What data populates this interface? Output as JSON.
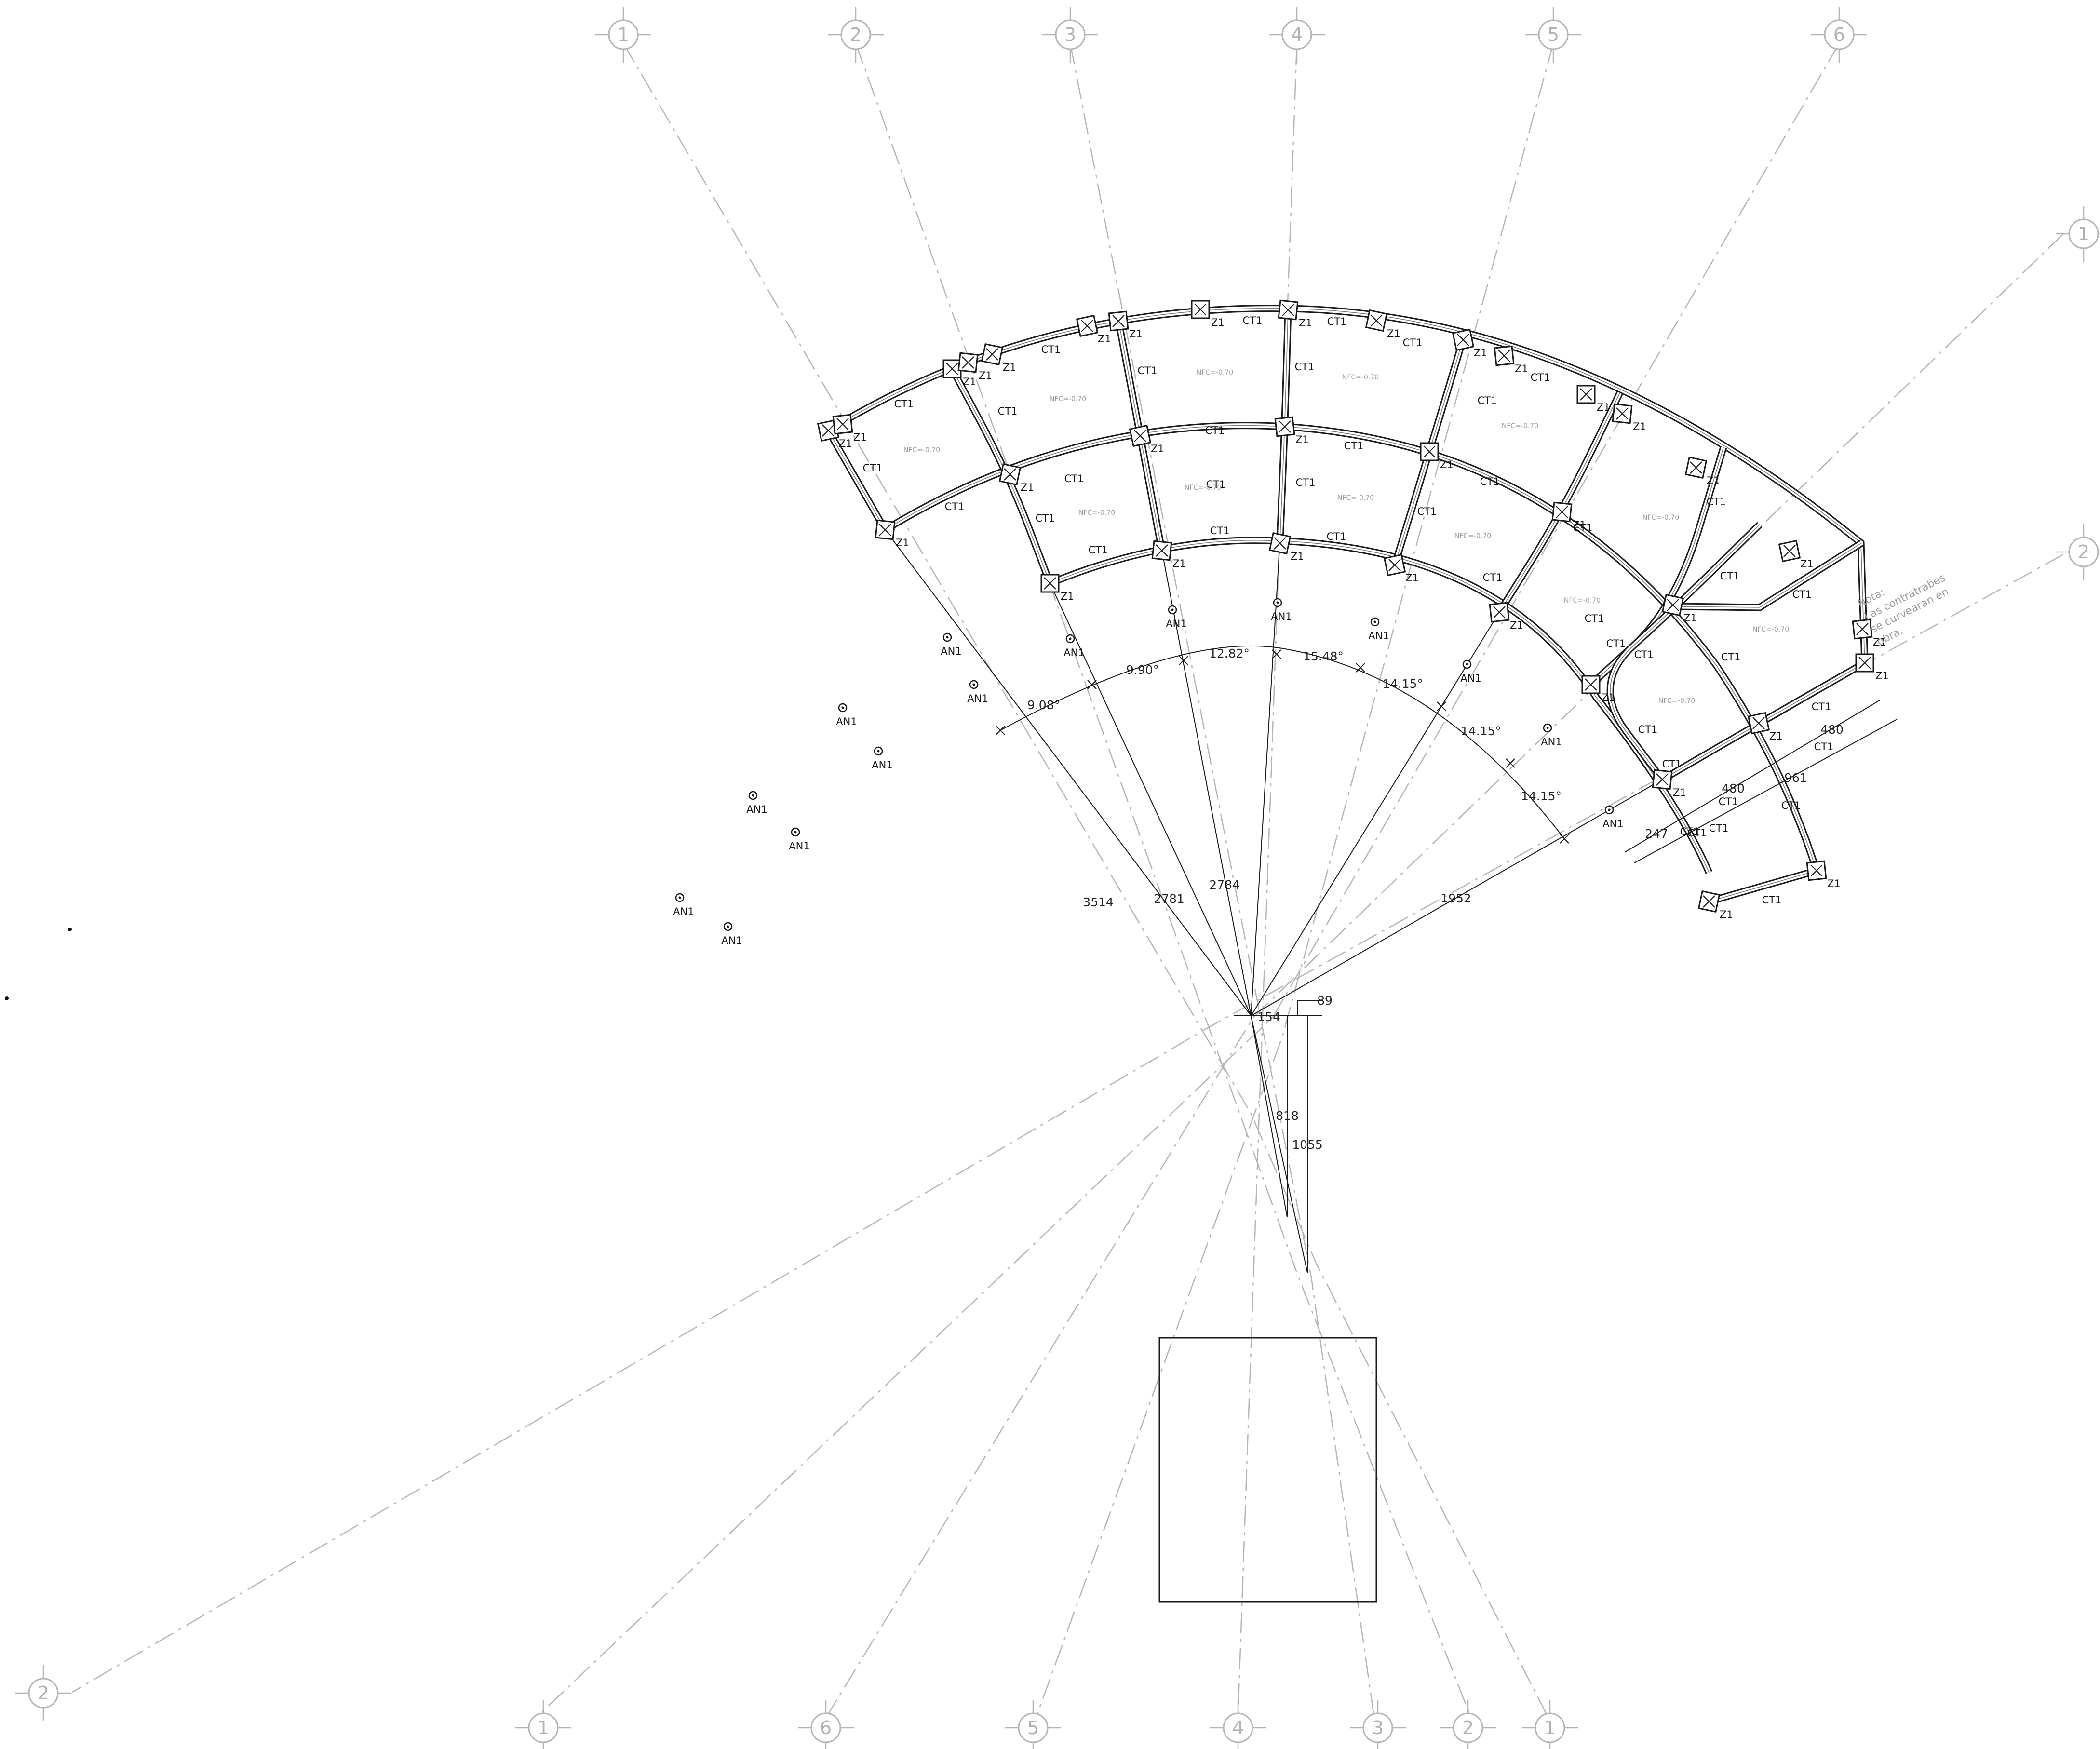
{
  "colors": {
    "line": "#1a1a1a",
    "grid_axis": "#b4b4b4",
    "note": "#9a9a9a"
  },
  "grid_bubbles": [
    {
      "id": "top-1",
      "label": "1"
    },
    {
      "id": "top-2",
      "label": "2"
    },
    {
      "id": "top-3",
      "label": "3"
    },
    {
      "id": "top-4",
      "label": "4"
    },
    {
      "id": "top-5",
      "label": "5"
    },
    {
      "id": "top-6",
      "label": "6"
    },
    {
      "id": "right-1",
      "label": "1"
    },
    {
      "id": "right-2",
      "label": "2"
    },
    {
      "id": "left-2",
      "label": "2"
    },
    {
      "id": "bottom-1",
      "label": "1"
    },
    {
      "id": "bottom-6",
      "label": "6"
    },
    {
      "id": "bottom-5",
      "label": "5"
    },
    {
      "id": "bottom-4",
      "label": "4"
    },
    {
      "id": "bottom-3",
      "label": "3"
    },
    {
      "id": "bottom-2",
      "label": "2"
    },
    {
      "id": "bottom-1b",
      "label": "1"
    }
  ],
  "angle_dimensions": [
    "9.08°",
    "9.90°",
    "12.82°",
    "15.48°",
    "14.15°",
    "14.15°",
    "14.15°"
  ],
  "radius_dimensions": [
    "3514",
    "2781",
    "2784",
    "1952"
  ],
  "linear_dimensions": {
    "center_offset_x": "154",
    "center_offset_x2": "89",
    "center_offset_y": "818",
    "center_offset_y2": "1055",
    "end_247": "247",
    "end_480a": "480",
    "end_480b": "480",
    "end_961": "961"
  },
  "codes": {
    "footing": "Z1",
    "beam": "CT1",
    "anchor": "AN1",
    "slab_level": "NFC=-0.70"
  },
  "note": {
    "line1": "Nota:",
    "line2": "Las contratrabes",
    "line3": "se curvearan en",
    "line4": "obra."
  }
}
